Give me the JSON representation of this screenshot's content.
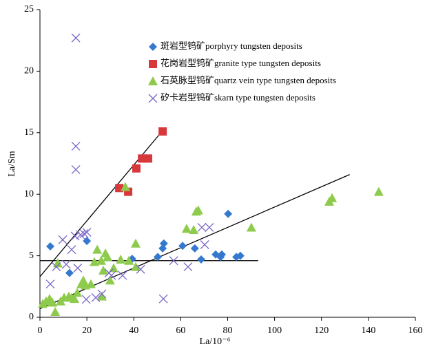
{
  "chart_data": {
    "type": "scatter",
    "xlabel": "La/10⁻⁶",
    "ylabel": "La/Sm",
    "xlim": [
      0,
      160
    ],
    "ylim": [
      0,
      25
    ],
    "xticks": [
      0,
      20,
      40,
      60,
      80,
      100,
      120,
      140,
      160
    ],
    "yticks": [
      0,
      5,
      10,
      15,
      20,
      25
    ],
    "legend": "upper center",
    "series": [
      {
        "name": "斑岩型钨矿porphyry tungsten deposits",
        "color": "#3579cf",
        "marker": "diamond",
        "x": [
          4.4,
          12.6,
          20,
          39.3,
          50.2,
          52.3,
          52.8,
          60.8,
          66,
          68.7,
          74.9,
          77,
          77.5,
          80.2,
          83.7,
          85.4
        ],
        "values": [
          5.76,
          3.6,
          6.2,
          4.75,
          4.9,
          5.6,
          6.0,
          5.8,
          5.6,
          4.7,
          5.1,
          4.9,
          5.1,
          8.4,
          4.9,
          5.0
        ]
      },
      {
        "name": "花岗岩型钨矿granite type tungsten deposits",
        "color": "#d7383b",
        "marker": "square",
        "x": [
          33.8,
          37.6,
          41.1,
          43.5,
          46.1,
          52.3
        ],
        "values": [
          10.5,
          10.2,
          12.1,
          12.9,
          12.9,
          15.1
        ]
      },
      {
        "name": "石英脉型钨矿quartz vein type tungsten deposits",
        "color": "#8ecb4c",
        "marker": "triangle",
        "x": [
          1.2,
          2.6,
          4.1,
          5.3,
          6.5,
          7.6,
          8.8,
          10.3,
          12.3,
          13.5,
          14.7,
          15.9,
          17.6,
          18.5,
          19.4,
          21.7,
          23.2,
          24.4,
          26.1,
          26.4,
          27,
          27.9,
          28.8,
          29.9,
          31.4,
          34.4,
          36.4,
          37.9,
          40.8,
          40.8,
          62.5,
          65.5,
          66.6,
          67.5,
          90.1,
          123.3,
          124.5,
          144.4
        ],
        "values": [
          1.1,
          1.3,
          1.5,
          1.2,
          0.45,
          4.4,
          1.3,
          1.6,
          1.7,
          1.6,
          1.5,
          2.0,
          2.7,
          3.0,
          2.6,
          2.7,
          4.5,
          5.5,
          4.6,
          1.7,
          3.8,
          5.2,
          4.9,
          3.0,
          4.0,
          4.7,
          10.6,
          4.6,
          6.0,
          4.1,
          7.2,
          7.1,
          8.6,
          8.7,
          7.3,
          9.4,
          9.7,
          10.2
        ]
      },
      {
        "name": "矽卡岩型钨矿skarn type tungsten deposits",
        "color": "#7a66c6",
        "marker": "x",
        "x": [
          15.3,
          15.3,
          15.3,
          4.4,
          7,
          9.7,
          11.2,
          13.5,
          15,
          16.1,
          17.3,
          18.8,
          20,
          19.7,
          23.8,
          26.4,
          29.4,
          30.5,
          35.2,
          42.9,
          52.6,
          57,
          63.1,
          69,
          72.2,
          70.2
        ],
        "values": [
          22.7,
          13.9,
          12.0,
          2.7,
          4.1,
          6.3,
          4.3,
          5.5,
          6.6,
          4.0,
          6.7,
          6.8,
          6.9,
          1.45,
          1.6,
          1.9,
          3.6,
          3.4,
          3.4,
          3.9,
          1.5,
          4.6,
          4.1,
          7.3,
          7.3,
          5.9
        ]
      }
    ],
    "trend_lines": [
      {
        "x": [
          0,
          52
        ],
        "values": [
          3.3,
          15.1
        ]
      },
      {
        "x": [
          0,
          93
        ],
        "values": [
          4.6,
          4.6
        ]
      },
      {
        "x": [
          0,
          132
        ],
        "values": [
          0.7,
          11.6
        ]
      }
    ],
    "trend_color": "#000000"
  }
}
